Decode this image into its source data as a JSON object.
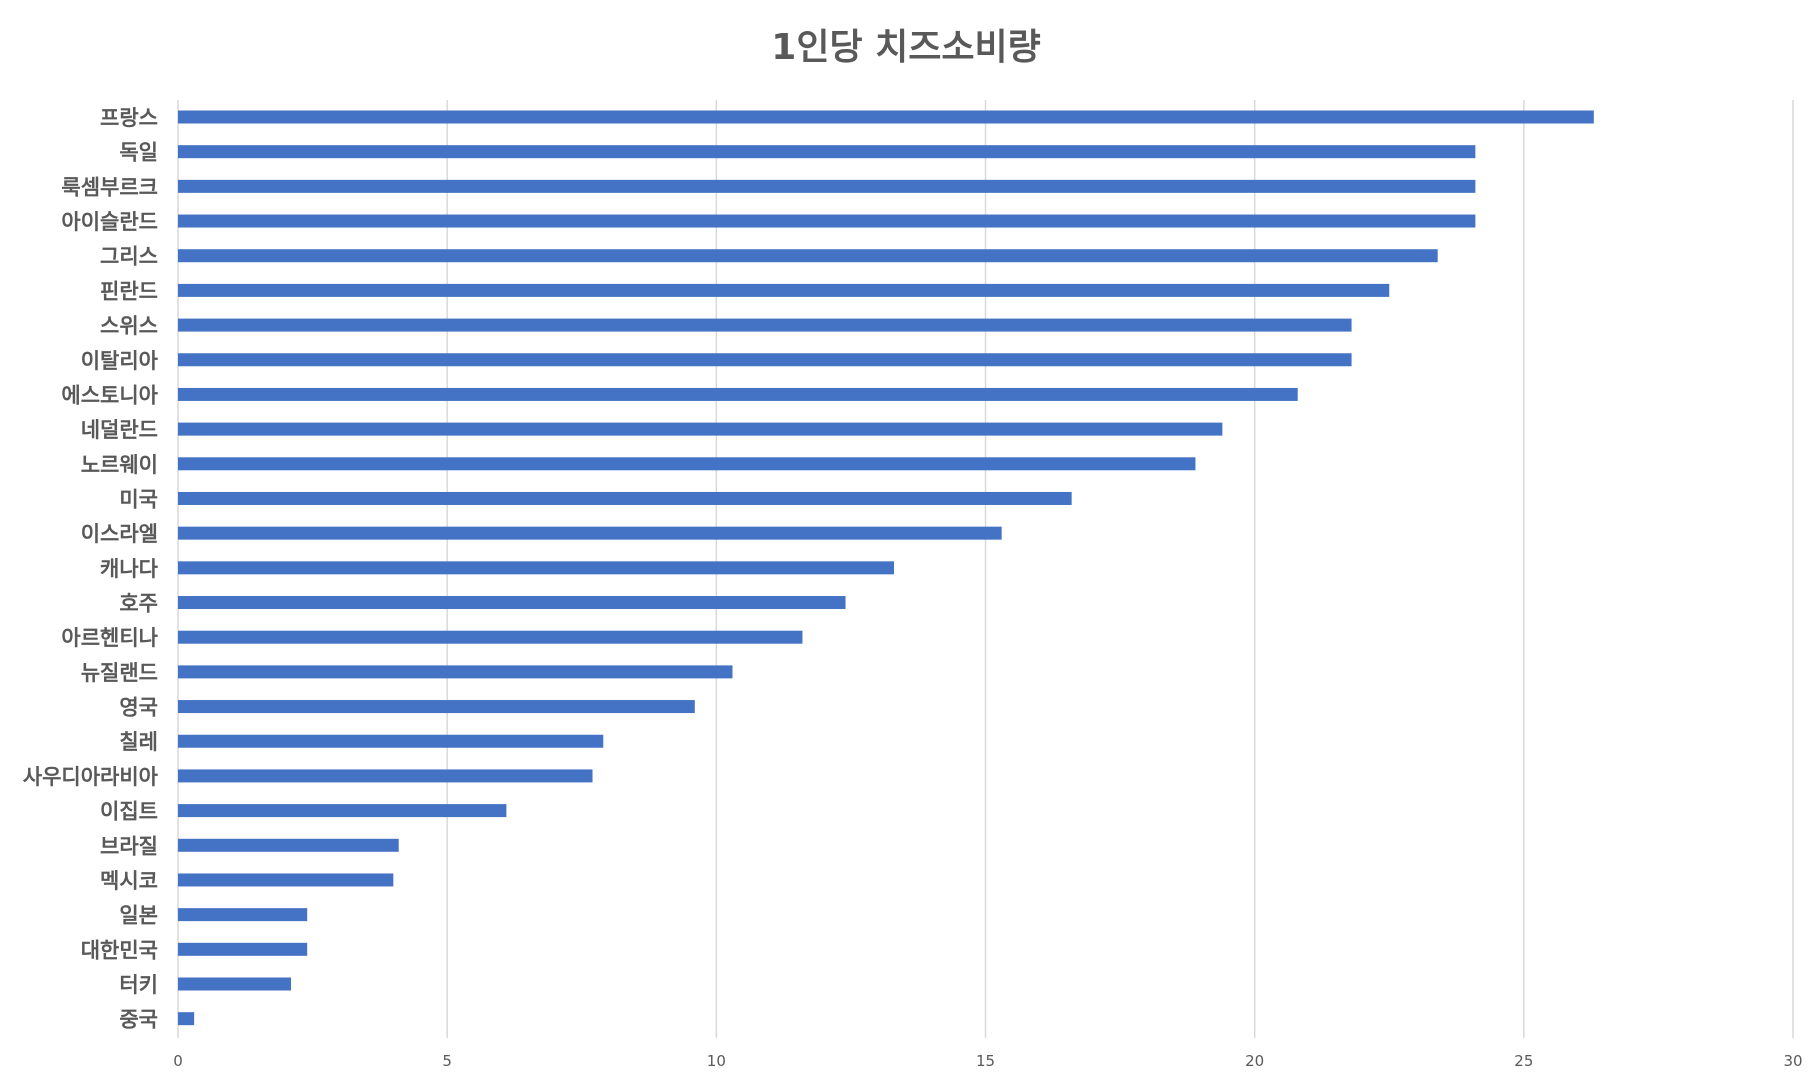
{
  "chart_data": {
    "type": "bar",
    "orientation": "horizontal",
    "title": "1인당 치즈소비량",
    "xlabel": "",
    "ylabel": "",
    "xlim": [
      0,
      30
    ],
    "xticks": [
      0,
      5,
      10,
      15,
      20,
      25,
      30
    ],
    "grid": true,
    "legend": "none",
    "bar_color": "#4472C4",
    "categories": [
      "프랑스",
      "독일",
      "룩셈부르크",
      "아이슬란드",
      "그리스",
      "핀란드",
      "스위스",
      "이탈리아",
      "에스토니아",
      "네덜란드",
      "노르웨이",
      "미국",
      "이스라엘",
      "캐나다",
      "호주",
      "아르헨티나",
      "뉴질랜드",
      "영국",
      "칠레",
      "사우디아라비아",
      "이집트",
      "브라질",
      "멕시코",
      "일본",
      "대한민국",
      "터키",
      "중국"
    ],
    "values": [
      26.3,
      24.1,
      24.1,
      24.1,
      23.4,
      22.5,
      21.8,
      21.8,
      20.8,
      19.4,
      18.9,
      16.6,
      15.3,
      13.3,
      12.4,
      11.6,
      10.3,
      9.6,
      7.9,
      7.7,
      6.1,
      4.1,
      4.0,
      2.4,
      2.4,
      2.1,
      0.3
    ]
  }
}
